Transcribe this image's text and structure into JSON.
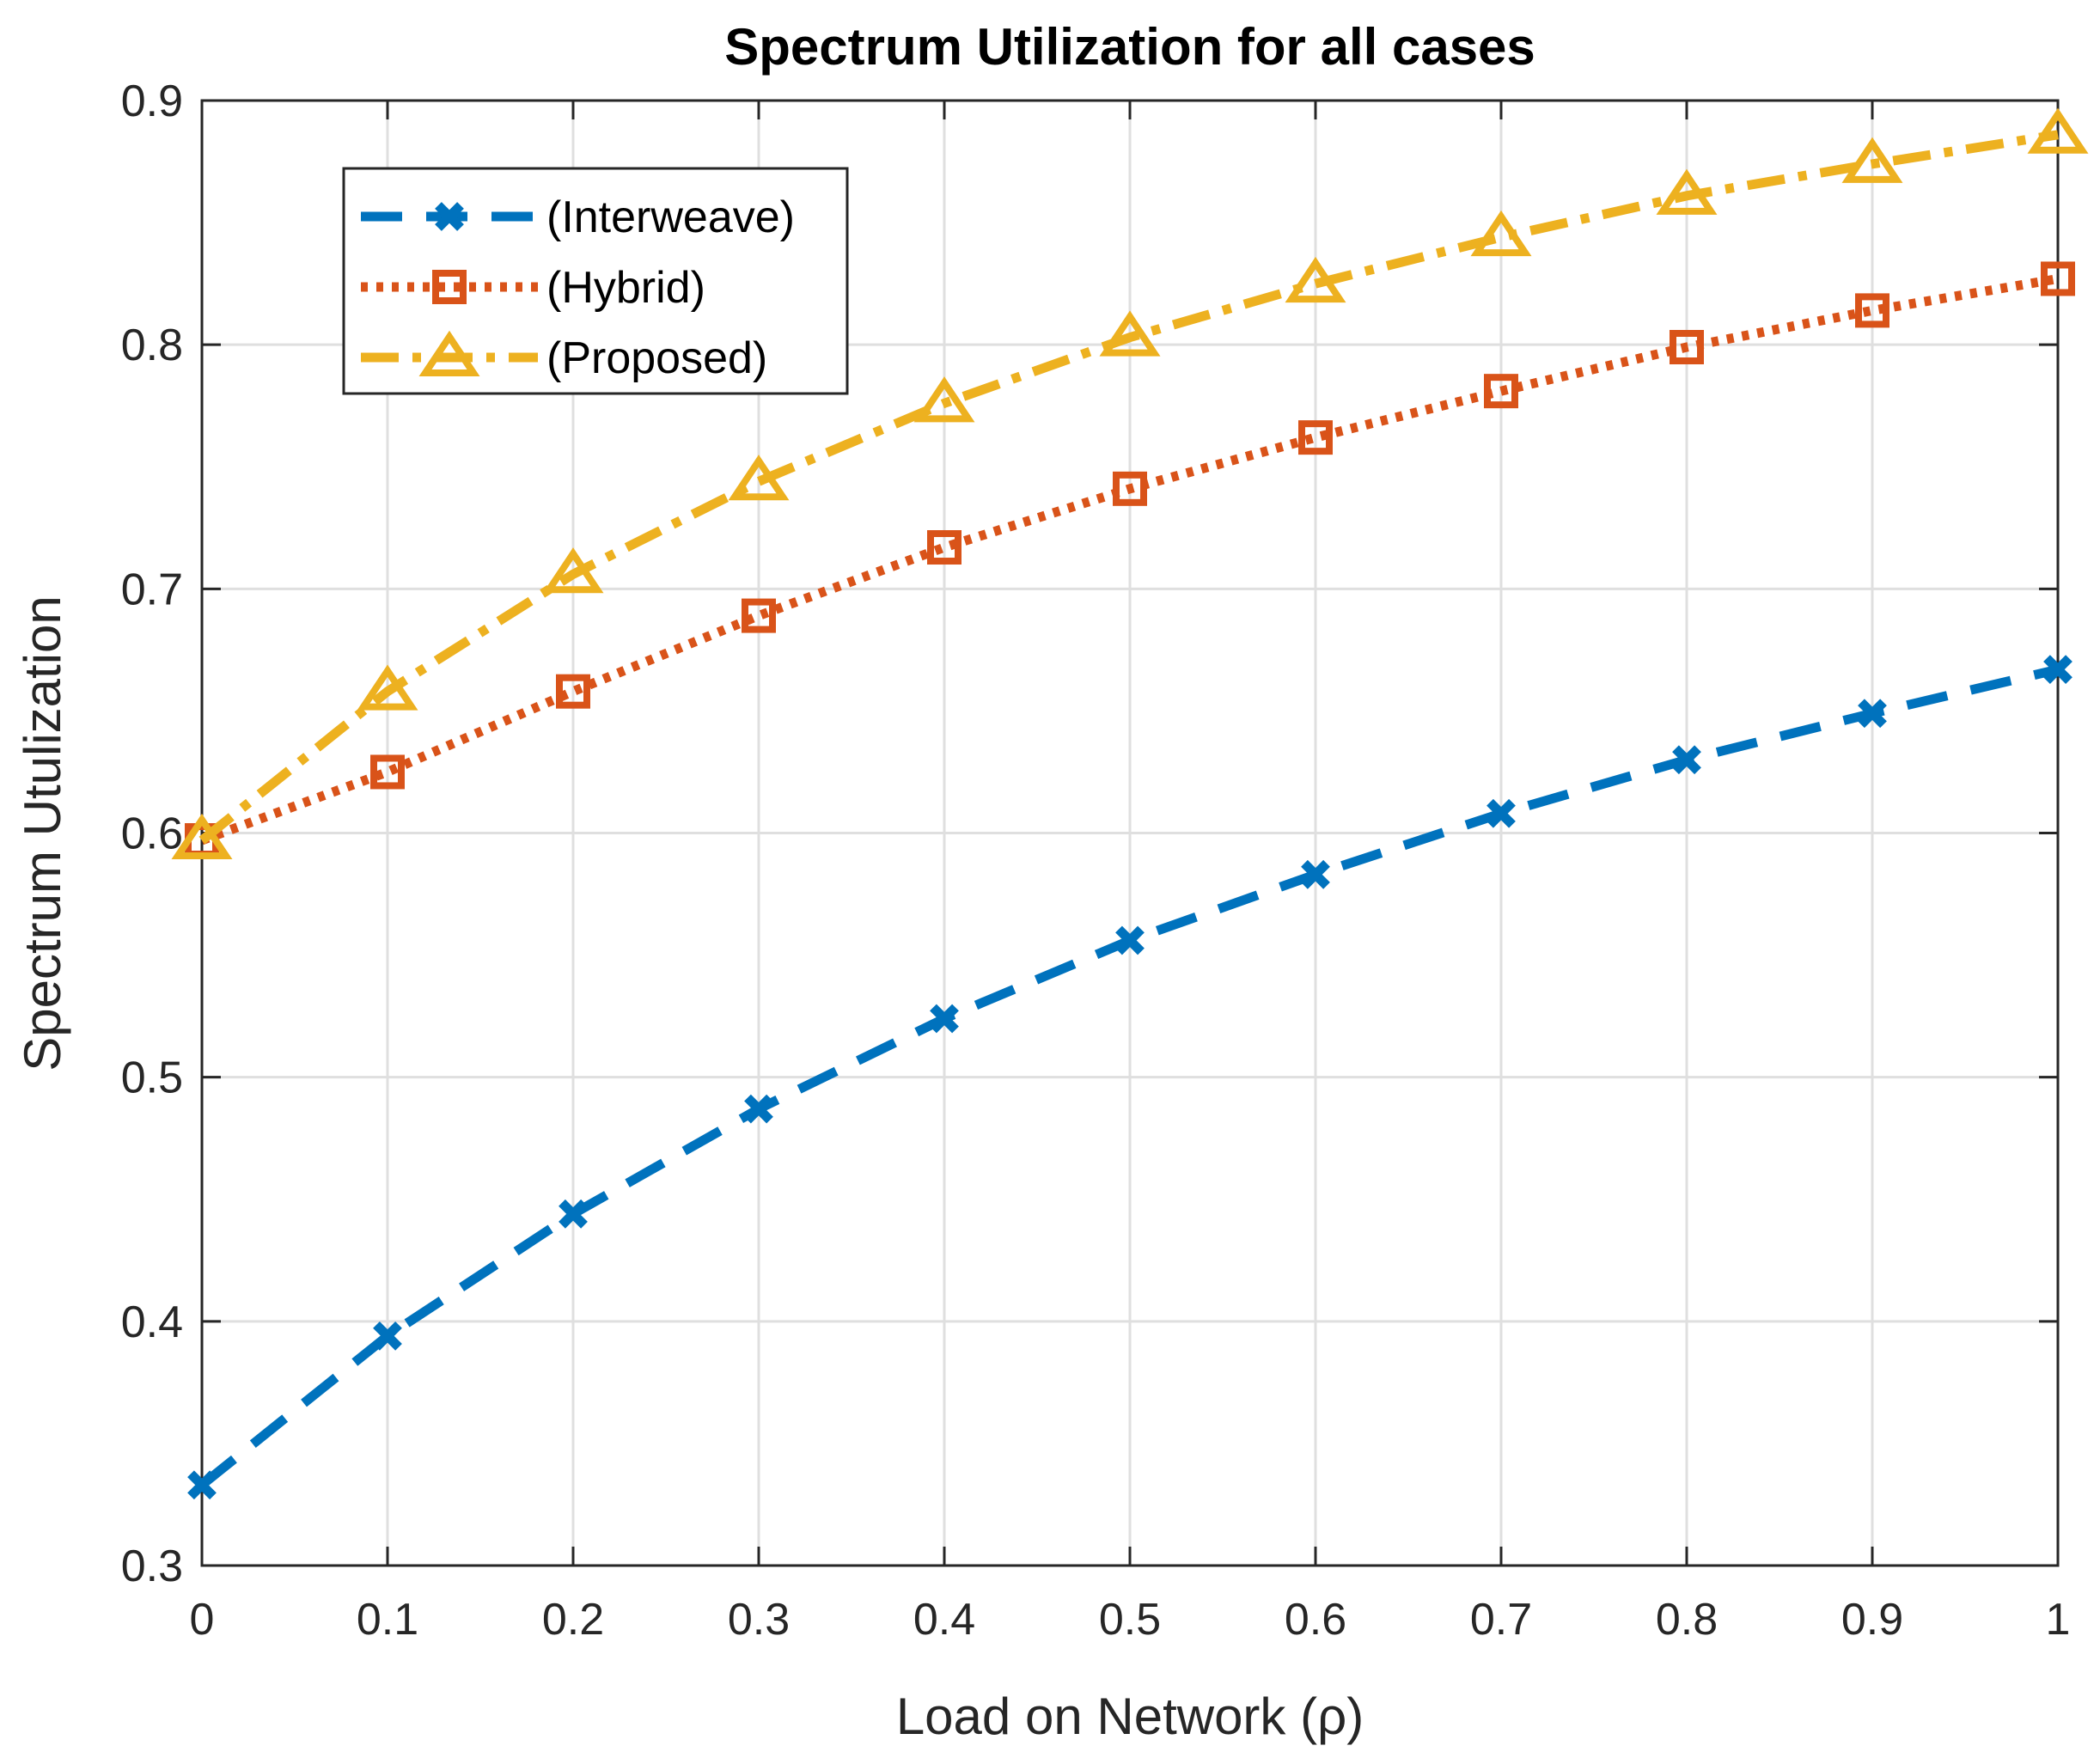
{
  "chart_data": {
    "type": "line",
    "title": "Spectrum Utilization for all cases",
    "xlabel": "Load on Network (ρ)",
    "ylabel": "Spectrum Utulization",
    "xlim": [
      0,
      1
    ],
    "ylim": [
      0.3,
      0.9
    ],
    "grid": true,
    "legend_position": "top-left",
    "x": [
      0,
      0.1,
      0.2,
      0.3,
      0.4,
      0.5,
      0.6,
      0.7,
      0.8,
      0.9,
      1
    ],
    "x_tick_labels": [
      "0",
      "0.1",
      "0.2",
      "0.3",
      "0.4",
      "0.5",
      "0.6",
      "0.7",
      "0.8",
      "0.9",
      "1"
    ],
    "y_ticks": [
      0.3,
      0.4,
      0.5,
      0.6,
      0.7,
      0.8,
      0.9
    ],
    "y_tick_labels": [
      "0.3",
      "0.4",
      "0.5",
      "0.6",
      "0.7",
      "0.8",
      "0.9"
    ],
    "series": [
      {
        "name": "(Interweave)",
        "color": "#0072BD",
        "line_style": "dashed",
        "marker": "x",
        "values": [
          0.333,
          0.394,
          0.444,
          0.487,
          0.524,
          0.556,
          0.583,
          0.608,
          0.63,
          0.649,
          0.667
        ]
      },
      {
        "name": "(Hybrid)",
        "color": "#D95319",
        "line_style": "dotted",
        "marker": "square",
        "values": [
          0.597,
          0.625,
          0.658,
          0.689,
          0.717,
          0.741,
          0.762,
          0.781,
          0.799,
          0.814,
          0.827
        ]
      },
      {
        "name": "(Proposed)",
        "color": "#EDB120",
        "line_style": "dash-dot",
        "marker": "triangle",
        "values": [
          0.597,
          0.658,
          0.706,
          0.744,
          0.776,
          0.803,
          0.825,
          0.844,
          0.861,
          0.874,
          0.886
        ]
      }
    ]
  }
}
